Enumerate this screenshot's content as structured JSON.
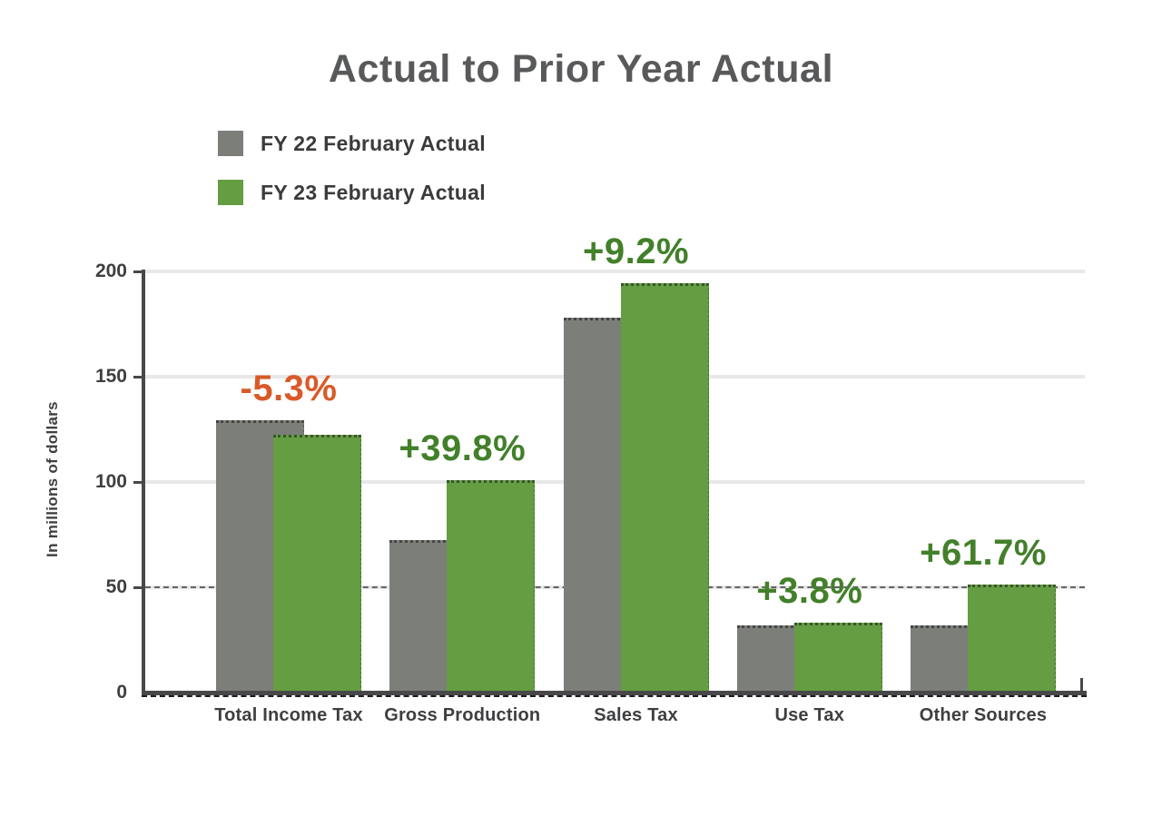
{
  "page": {
    "background": "#FFFFFF"
  },
  "chart_data": {
    "type": "bar",
    "title": "Actual to Prior Year Actual",
    "ylabel": "In millions of dollars",
    "xlabel": "",
    "categories": [
      "Total Income Tax",
      "Gross Production",
      "Sales Tax",
      "Use Tax",
      "Other Sources"
    ],
    "series": [
      {
        "name": "FY 22 February Actual",
        "color": "#7C7E7A",
        "values": [
          129.4,
          72.2,
          178.0,
          31.8,
          31.8
        ]
      },
      {
        "name": "FY 23 February Actual",
        "color": "#649D42",
        "values": [
          122.6,
          100.9,
          194.4,
          33.0,
          51.4
        ]
      }
    ],
    "annotations": [
      {
        "text": "-5.3%",
        "color": "#D95A28"
      },
      {
        "text": "+39.8%",
        "color": "#42802A"
      },
      {
        "text": "+9.2%",
        "color": "#42802A"
      },
      {
        "text": "+3.8%",
        "color": "#42802A"
      },
      {
        "text": "+61.7%",
        "color": "#42802A"
      }
    ],
    "yticks": [
      0,
      50,
      100,
      150,
      200
    ],
    "ylim": [
      0,
      200
    ],
    "grid": true,
    "bar_style": "overlapping",
    "legend_position": "top-left",
    "reference_line": {
      "y": 50,
      "style": "dashed",
      "color": "#3A3A3A"
    },
    "colors": {
      "title": "#58595B",
      "axis": "#48484A",
      "tick_labels": "#3E3F41",
      "gridline": "#E8E8E8",
      "negative_label": "#D95A28",
      "positive_label": "#42802A"
    }
  }
}
